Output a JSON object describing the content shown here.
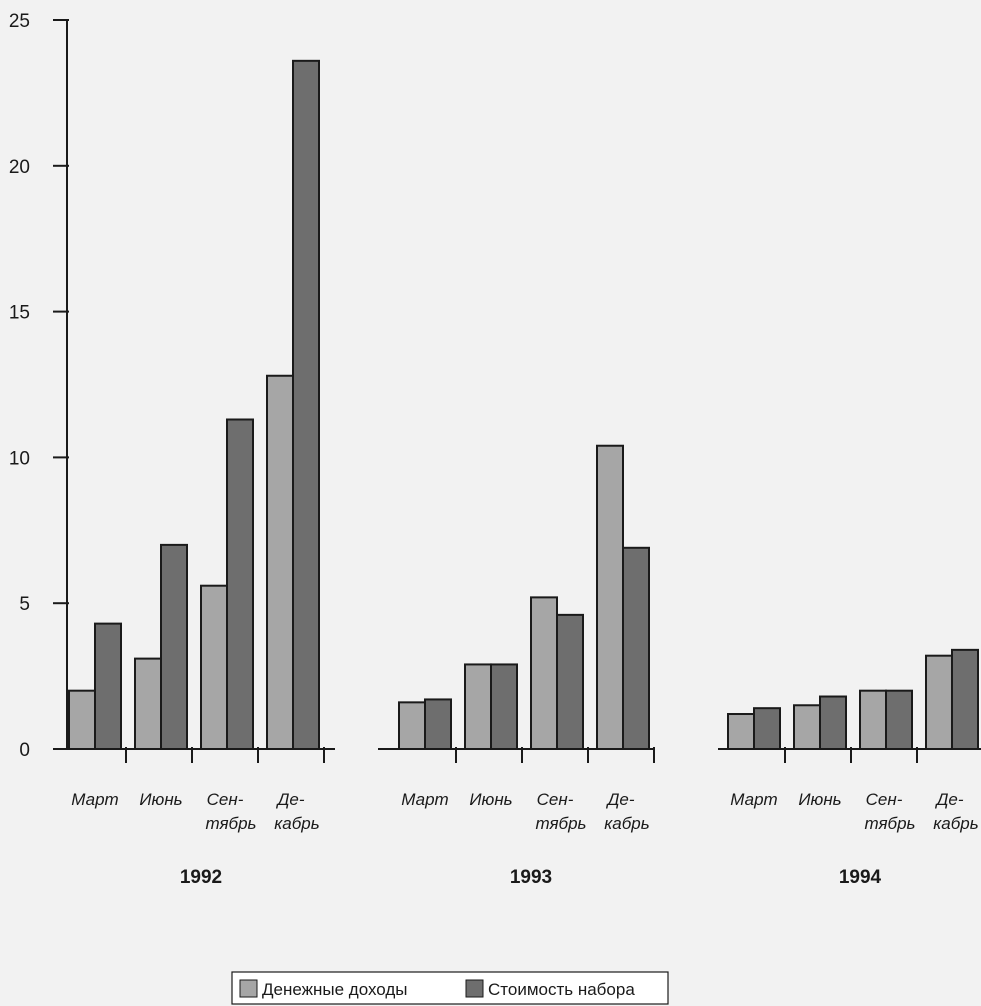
{
  "chart_data": {
    "type": "bar",
    "groups": [
      {
        "year": "1992",
        "categories": [
          {
            "lines": [
              "Март"
            ],
            "values": [
              2.0,
              4.3
            ]
          },
          {
            "lines": [
              "Июнь"
            ],
            "values": [
              3.1,
              7.0
            ]
          },
          {
            "lines": [
              "Сен-",
              "тябрь"
            ],
            "values": [
              5.6,
              11.3
            ]
          },
          {
            "lines": [
              "Де-",
              "кабрь"
            ],
            "values": [
              12.8,
              23.6
            ]
          }
        ]
      },
      {
        "year": "1993",
        "categories": [
          {
            "lines": [
              "Март"
            ],
            "values": [
              1.6,
              1.7
            ]
          },
          {
            "lines": [
              "Июнь"
            ],
            "values": [
              2.9,
              2.9
            ]
          },
          {
            "lines": [
              "Сен-",
              "тябрь"
            ],
            "values": [
              5.2,
              4.6
            ]
          },
          {
            "lines": [
              "Де-",
              "кабрь"
            ],
            "values": [
              10.4,
              6.9
            ]
          }
        ]
      },
      {
        "year": "1994",
        "categories": [
          {
            "lines": [
              "Март"
            ],
            "values": [
              1.2,
              1.4
            ]
          },
          {
            "lines": [
              "Июнь"
            ],
            "values": [
              1.5,
              1.8
            ]
          },
          {
            "lines": [
              "Сен-",
              "тябрь"
            ],
            "values": [
              2.0,
              2.0
            ]
          },
          {
            "lines": [
              "Де-",
              "кабрь"
            ],
            "values": [
              3.2,
              3.4
            ]
          }
        ]
      }
    ],
    "series": [
      {
        "name": "Денежные доходы",
        "color": "#a6a6a6"
      },
      {
        "name": "Стоимость набора",
        "color": "#6e6e6e"
      }
    ],
    "ylim": [
      0,
      25
    ],
    "yticks": [
      0,
      5,
      10,
      15,
      20,
      25
    ],
    "legend_position": "bottom-center",
    "grid": false
  }
}
